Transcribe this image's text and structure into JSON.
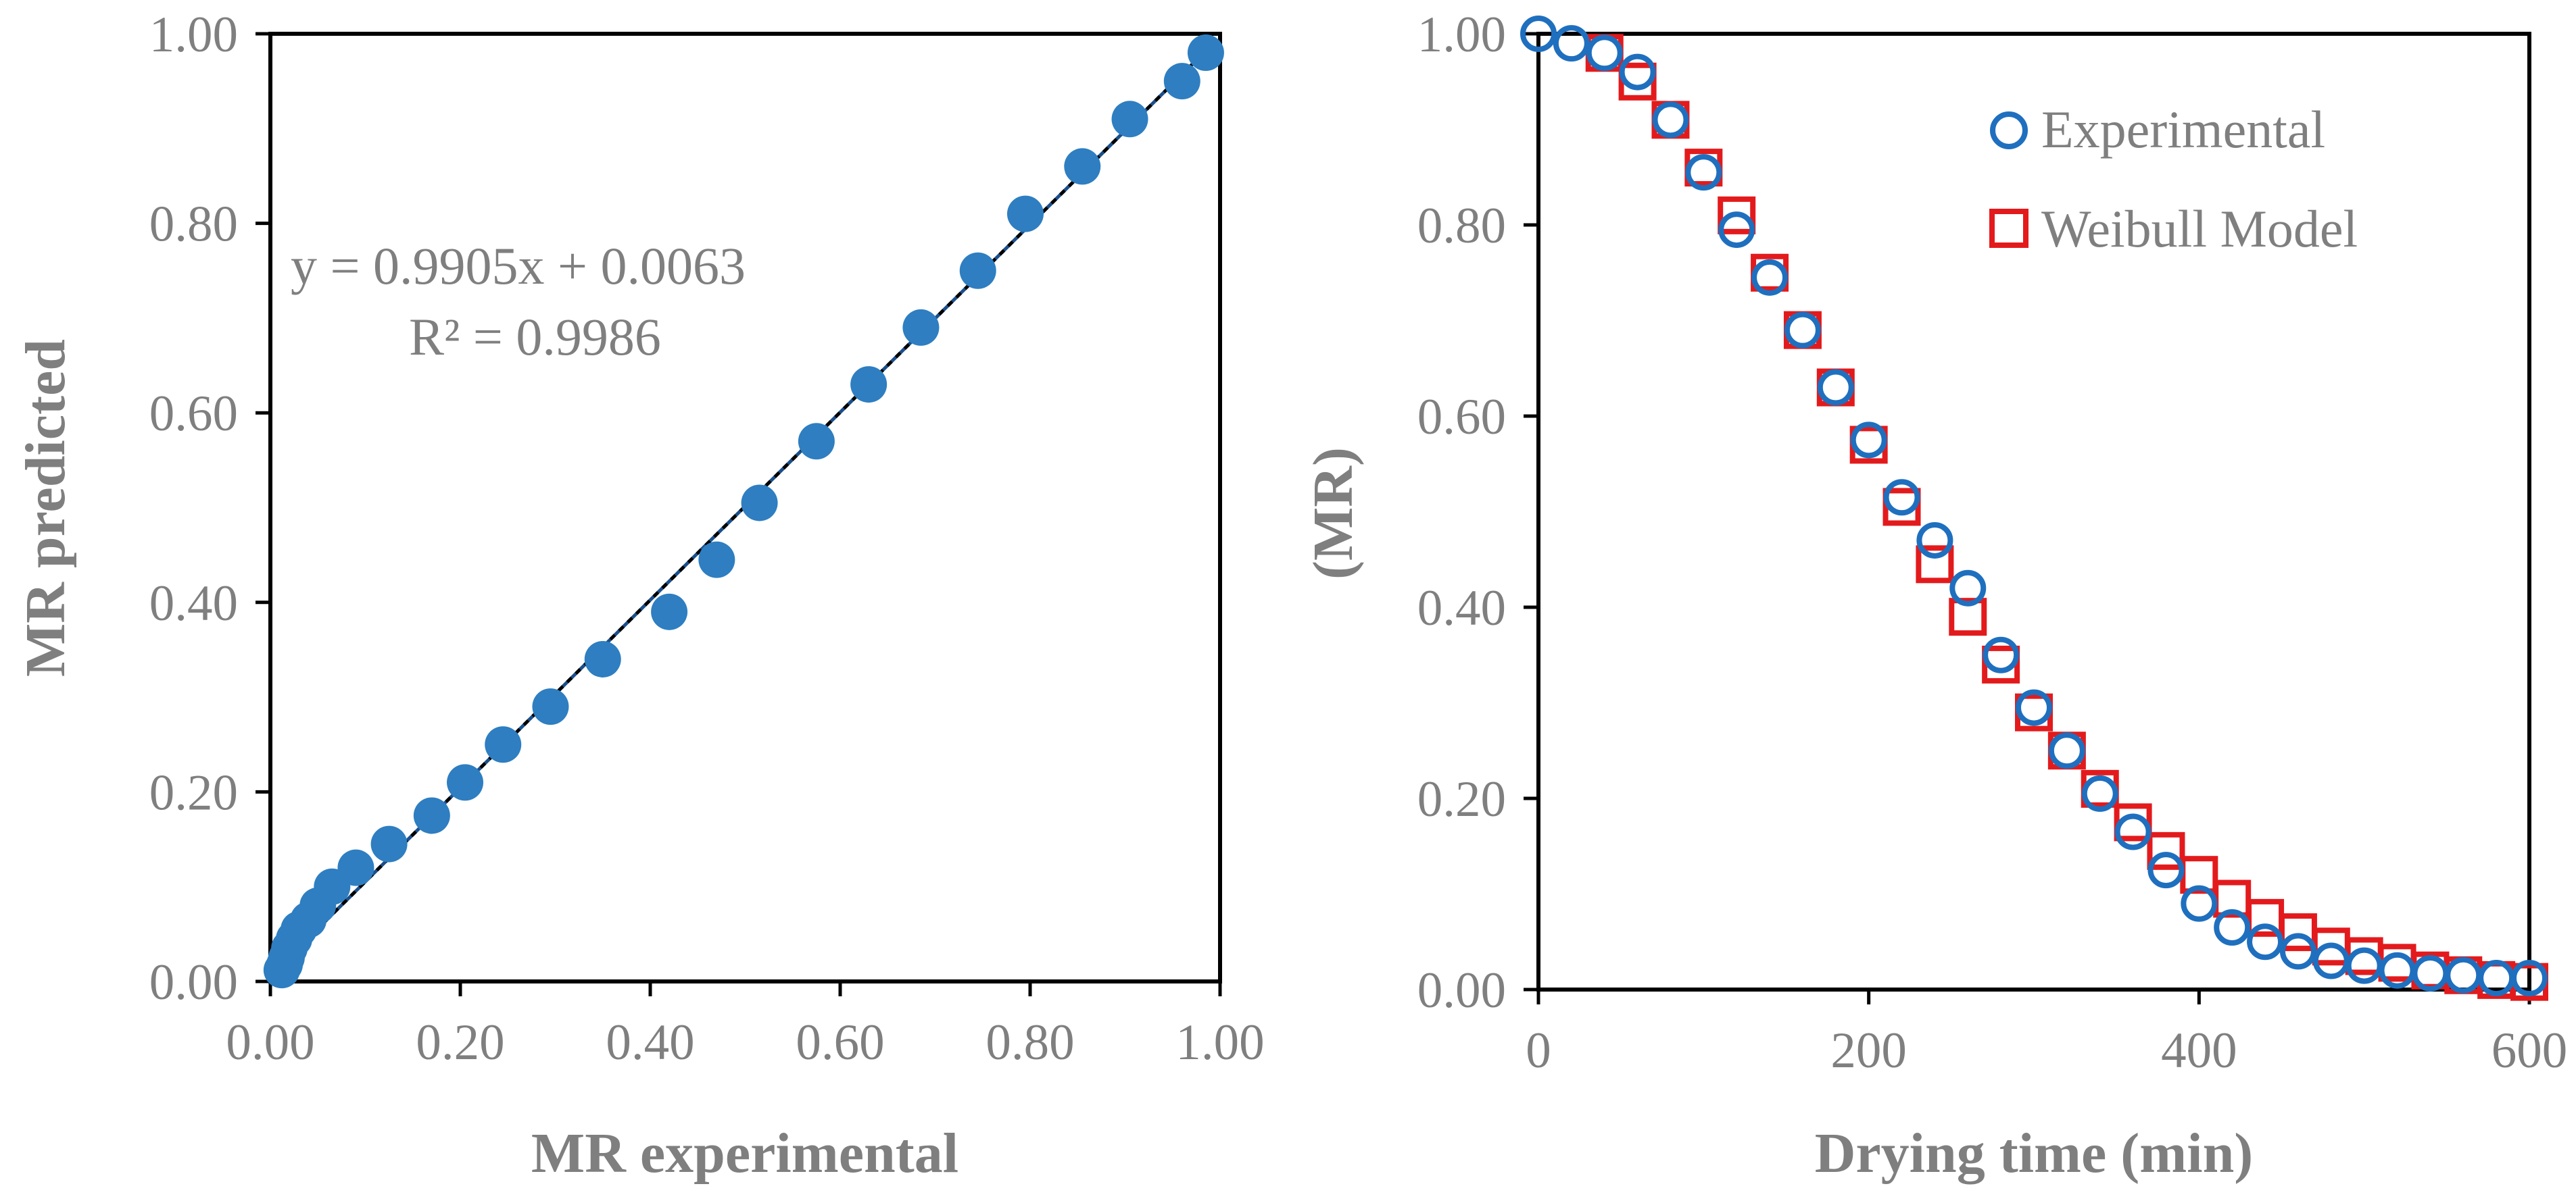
{
  "chart_data": [
    {
      "type": "scatter",
      "id": "parity",
      "xlabel": "MR experimental",
      "ylabel": "MR predicted",
      "xlim": [
        0,
        1
      ],
      "ylim": [
        0,
        1
      ],
      "xticks": [
        "0.00",
        "0.20",
        "0.40",
        "0.60",
        "0.80",
        "1.00"
      ],
      "yticks": [
        "0.00",
        "0.20",
        "0.40",
        "0.60",
        "0.80",
        "1.00"
      ],
      "equation": "y = 0.9905x + 0.0063",
      "r2": "R² = 0.9986",
      "trendline": {
        "slope": 0.9905,
        "intercept": 0.0063
      },
      "marker_color": "#2e7ec1",
      "series": [
        {
          "name": "MR",
          "x": [
            0.985,
            0.96,
            0.905,
            0.855,
            0.795,
            0.745,
            0.685,
            0.63,
            0.575,
            0.515,
            0.47,
            0.42,
            0.35,
            0.295,
            0.245,
            0.205,
            0.17,
            0.125,
            0.09,
            0.065,
            0.05,
            0.04,
            0.03,
            0.025,
            0.02,
            0.017,
            0.015,
            0.012
          ],
          "y": [
            0.98,
            0.95,
            0.91,
            0.86,
            0.81,
            0.75,
            0.69,
            0.63,
            0.57,
            0.505,
            0.445,
            0.39,
            0.34,
            0.29,
            0.25,
            0.21,
            0.175,
            0.145,
            0.12,
            0.1,
            0.08,
            0.065,
            0.055,
            0.045,
            0.035,
            0.025,
            0.018,
            0.012
          ]
        }
      ]
    },
    {
      "type": "scatter",
      "id": "drying",
      "xlabel": "Drying time (min)",
      "ylabel": "(MR)",
      "xlim": [
        0,
        600
      ],
      "ylim": [
        0,
        1
      ],
      "xticks": [
        "0",
        "200",
        "400",
        "600"
      ],
      "yticks": [
        "0.00",
        "0.20",
        "0.40",
        "0.60",
        "0.80",
        "1.00"
      ],
      "x": [
        0,
        20,
        40,
        60,
        80,
        100,
        120,
        140,
        160,
        180,
        200,
        220,
        240,
        260,
        280,
        300,
        320,
        340,
        360,
        380,
        400,
        420,
        440,
        460,
        480,
        500,
        520,
        540,
        560,
        580,
        600
      ],
      "series": [
        {
          "name": "Experimental",
          "marker": "circle",
          "color": "#1f6fbf",
          "values": [
            1.0,
            0.99,
            0.98,
            0.96,
            0.91,
            0.855,
            0.795,
            0.745,
            0.69,
            0.63,
            0.575,
            0.515,
            0.47,
            0.42,
            0.35,
            0.295,
            0.25,
            0.205,
            0.165,
            0.125,
            0.09,
            0.065,
            0.05,
            0.04,
            0.03,
            0.025,
            0.02,
            0.017,
            0.015,
            0.012,
            0.012
          ]
        },
        {
          "name": "Weibull Model",
          "marker": "square",
          "color": "#e31a1c",
          "values": [
            null,
            null,
            0.98,
            0.95,
            0.91,
            0.86,
            0.81,
            0.75,
            0.69,
            0.63,
            0.57,
            0.505,
            0.445,
            0.39,
            0.34,
            0.29,
            0.25,
            0.21,
            0.175,
            0.145,
            0.12,
            0.095,
            0.075,
            0.06,
            0.045,
            0.035,
            0.028,
            0.02,
            0.015,
            0.01,
            0.008
          ]
        }
      ]
    }
  ]
}
